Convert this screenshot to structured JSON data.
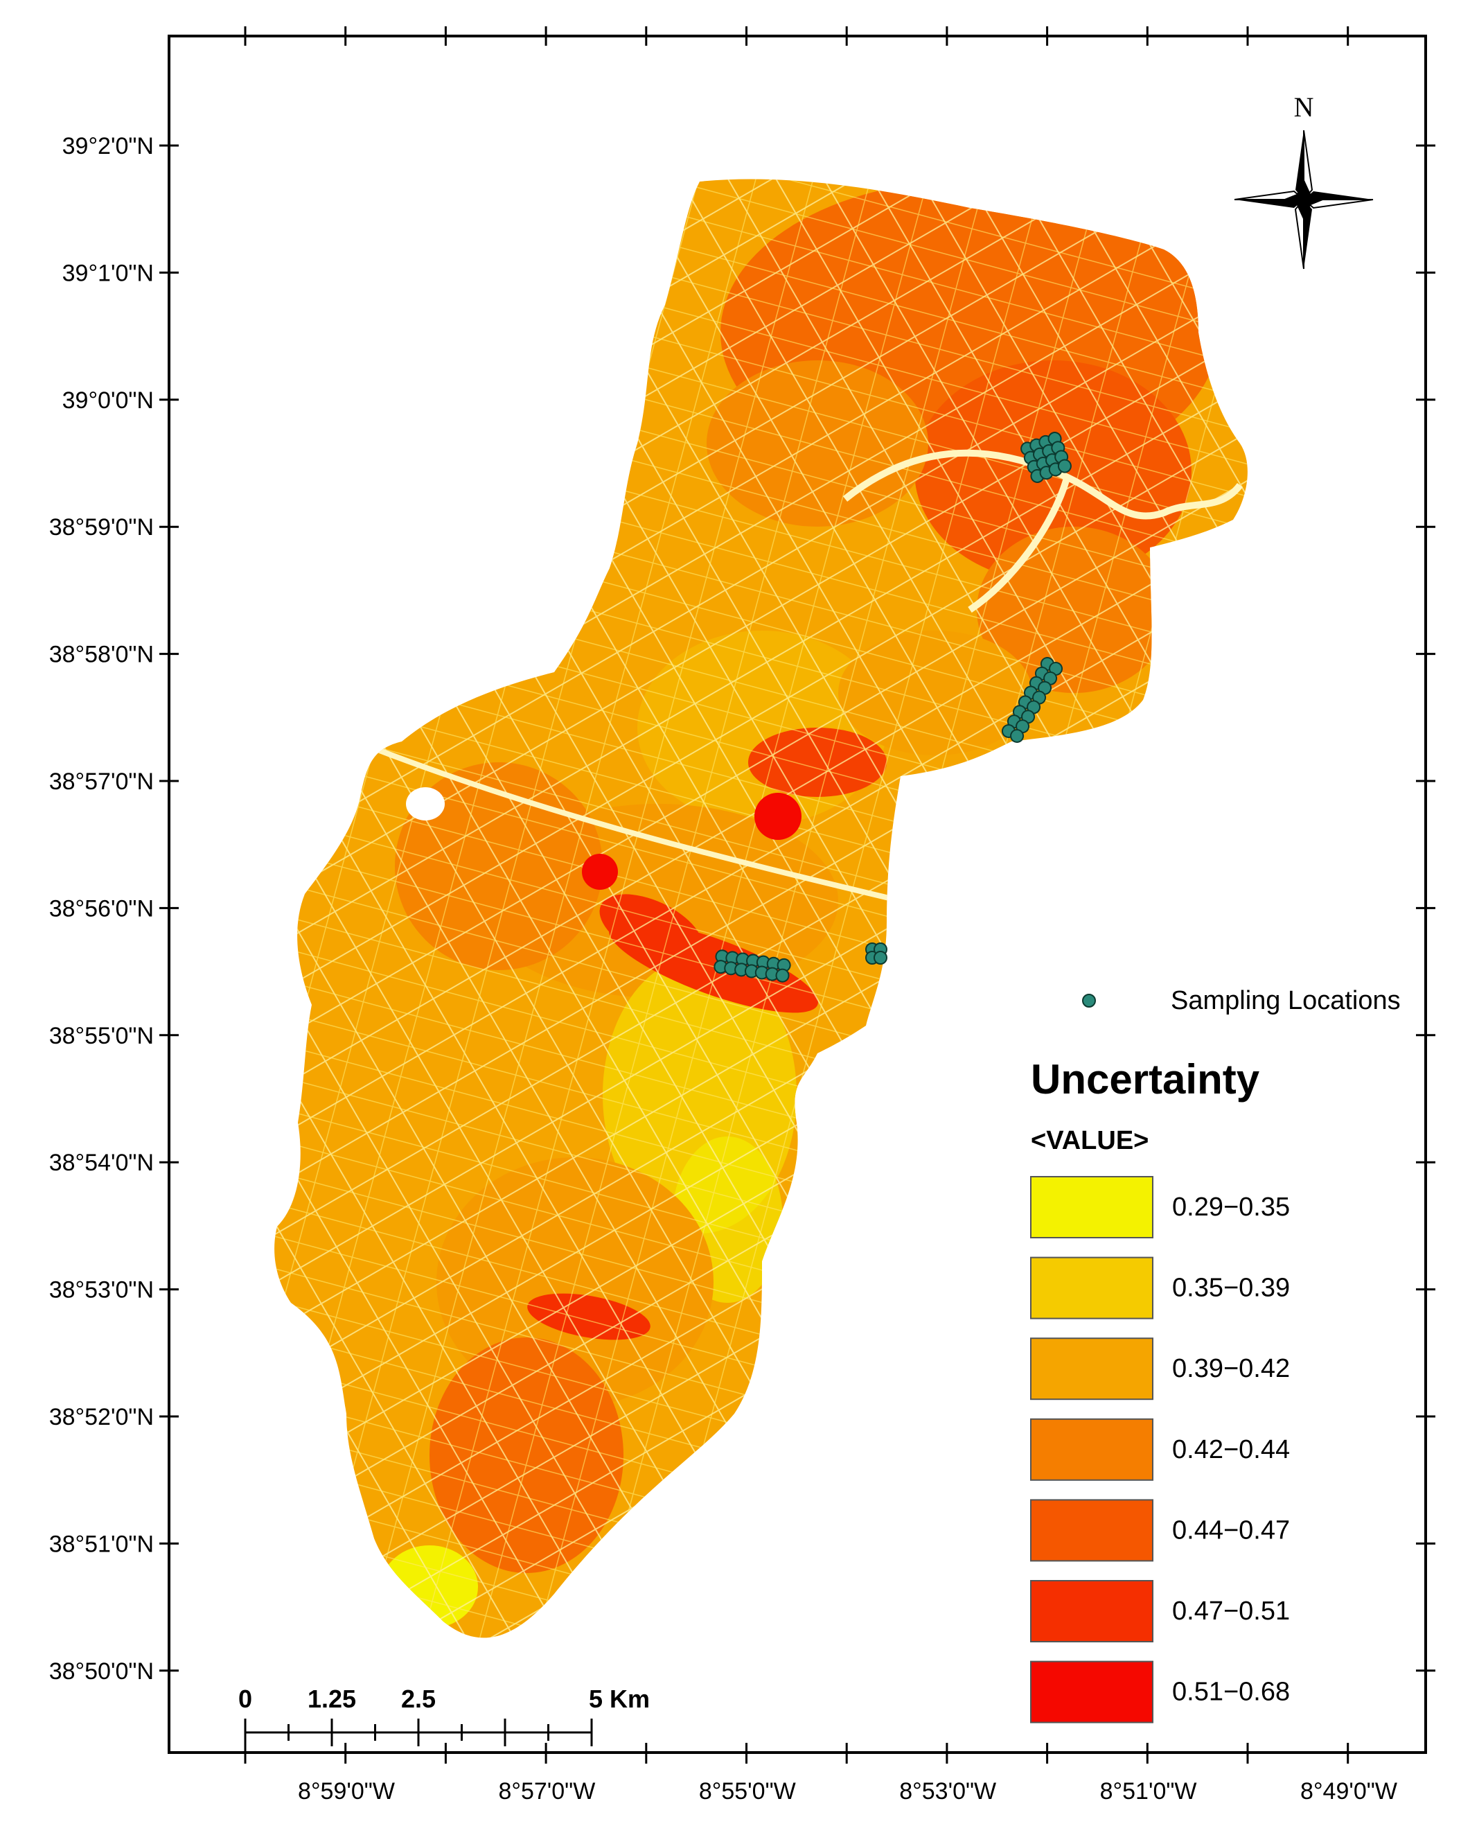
{
  "map": {
    "lat_labels": [
      "39°2'0\"N",
      "39°1'0\"N",
      "39°0'0\"N",
      "38°59'0\"N",
      "38°58'0\"N",
      "38°57'0\"N",
      "38°56'0\"N",
      "38°55'0\"N",
      "38°54'0\"N",
      "38°53'0\"N",
      "38°52'0\"N",
      "38°51'0\"N",
      "38°50'0\"N"
    ],
    "lon_labels": [
      "8°59'0\"W",
      "8°57'0\"W",
      "8°55'0\"W",
      "8°53'0\"W",
      "8°51'0\"W",
      "8°49'0\"W"
    ],
    "north_label": "N",
    "scale_labels": [
      "0",
      "1.25",
      "2.5",
      "5 Km"
    ],
    "sampling_label": "Sampling Locations",
    "legend_title": "Uncertainty",
    "legend_subtitle": "<VALUE>",
    "legend_classes": [
      {
        "label": "0.29−0.35",
        "color": "#f4f200"
      },
      {
        "label": "0.35−0.39",
        "color": "#f5cb00"
      },
      {
        "label": "0.39−0.42",
        "color": "#f5a500"
      },
      {
        "label": "0.42−0.44",
        "color": "#f57e00"
      },
      {
        "label": "0.44−0.47",
        "color": "#f55700"
      },
      {
        "label": "0.47−0.51",
        "color": "#f52f00"
      },
      {
        "label": "0.51−0.68",
        "color": "#f50800"
      }
    ],
    "colors": {
      "frame": "#000000",
      "sampling_point": "#2a8a7a",
      "field_lines": "#fff6a0"
    }
  }
}
